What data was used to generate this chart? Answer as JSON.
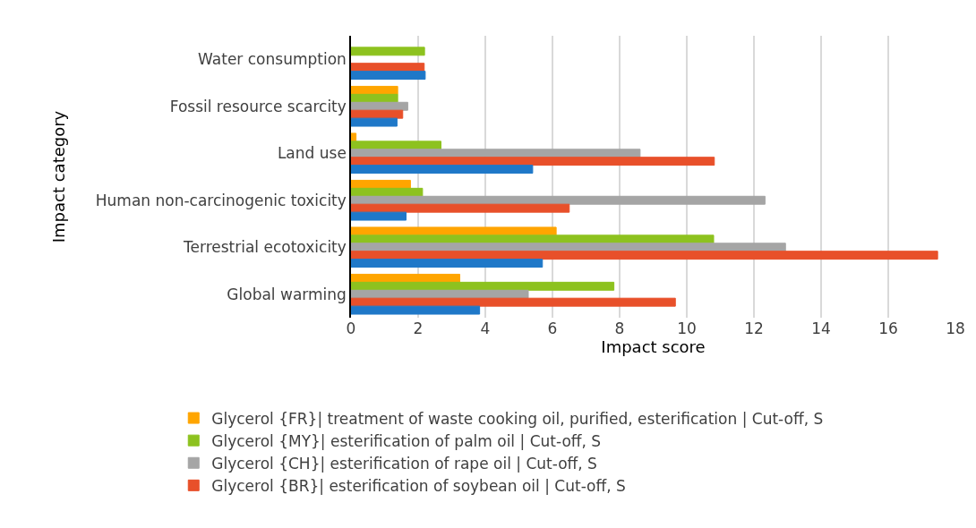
{
  "chart_data": {
    "type": "bar",
    "orientation": "horizontal",
    "xlabel": "Impact score",
    "ylabel": "Impact category",
    "categories": [
      "Water consumption",
      "Fossil resource scarcity",
      "Land use",
      "Human non-carcinogenic toxicity",
      "Terrestrial ecotoxicity",
      "Global warming"
    ],
    "series": [
      {
        "name": "Glycerol {FR}| treatment of waste cooking oil, purified, esterification | Cut-off, S",
        "color": "#ffa500",
        "values": [
          null,
          1.39,
          0.15,
          1.77,
          6.11,
          3.24
        ]
      },
      {
        "name": "Glycerol {MY}| esterification of palm oil | Cut-off, S",
        "color": "#8dc21f",
        "values": [
          2.19,
          1.39,
          2.68,
          2.13,
          10.8,
          7.83
        ]
      },
      {
        "name": "Glycerol {CH}| esterification of rape oil | Cut-off, S",
        "color": "#a5a5a5",
        "values": [
          null,
          1.69,
          8.61,
          12.33,
          12.94,
          5.28
        ]
      },
      {
        "name": "Glycerol {BR}| esterification of soybean oil | Cut-off, S",
        "color": "#e8502a",
        "values": [
          2.18,
          1.54,
          10.82,
          6.5,
          17.47,
          9.66
        ]
      },
      {
        "color": "#1f78c8",
        "values": [
          2.21,
          1.37,
          5.41,
          1.64,
          5.7,
          3.83
        ]
      }
    ],
    "xlim": [
      0,
      18
    ],
    "xticks": [
      0,
      2,
      4,
      6,
      8,
      10,
      12,
      14,
      16,
      18
    ],
    "grid": "x",
    "legend": "bottom"
  }
}
